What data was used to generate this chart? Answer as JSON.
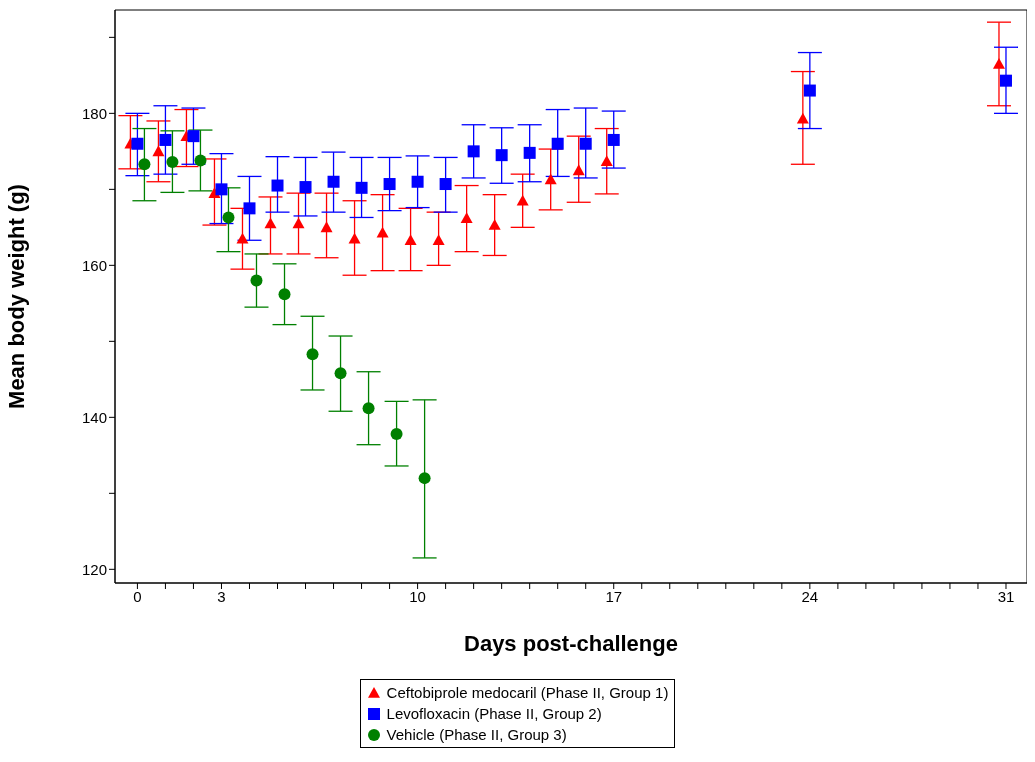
{
  "chart_data": {
    "type": "scatter",
    "xlabel": "Days post-challenge",
    "ylabel": "Mean body weight (g)",
    "xlim": [
      -0.8,
      31.75
    ],
    "ylim": [
      118.2,
      193.6
    ],
    "xticks": [
      0,
      {
        "value": 1,
        "label": null
      },
      {
        "value": 2,
        "label": null
      },
      3,
      {
        "value": 4,
        "label": null
      },
      {
        "value": 5,
        "label": null
      },
      {
        "value": 6,
        "label": null
      },
      {
        "value": 7,
        "label": null
      },
      {
        "value": 8,
        "label": null
      },
      {
        "value": 9,
        "label": null
      },
      10,
      {
        "value": 11,
        "label": null
      },
      {
        "value": 12,
        "label": null
      },
      {
        "value": 13,
        "label": null
      },
      {
        "value": 14,
        "label": null
      },
      {
        "value": 15,
        "label": null
      },
      {
        "value": 16,
        "label": null
      },
      17,
      {
        "value": 18,
        "label": null
      },
      {
        "value": 19,
        "label": null
      },
      {
        "value": 20,
        "label": null
      },
      {
        "value": 21,
        "label": null
      },
      {
        "value": 22,
        "label": null
      },
      {
        "value": 23,
        "label": null
      },
      24,
      {
        "value": 25,
        "label": null
      },
      {
        "value": 26,
        "label": null
      },
      {
        "value": 27,
        "label": null
      },
      {
        "value": 28,
        "label": null
      },
      {
        "value": 29,
        "label": null
      },
      {
        "value": 30,
        "label": null
      },
      31
    ],
    "yticks": [
      120,
      {
        "value": 130,
        "label": null
      },
      140,
      {
        "value": 150,
        "label": null
      },
      160,
      {
        "value": 170,
        "label": null
      },
      180,
      {
        "value": 190,
        "label": null
      }
    ],
    "grid": false,
    "legend": "bottom",
    "series": [
      {
        "name": "Ceftobiprole medocaril (Phase II, Group 1)",
        "color": "#ff0000",
        "marker": "triangle",
        "x": [
          -0.25,
          0.75,
          1.75,
          2.75,
          3.75,
          4.75,
          5.75,
          6.75,
          7.75,
          8.75,
          9.75,
          10.75,
          11.75,
          12.75,
          13.75,
          14.75,
          15.75,
          16.75,
          23.75,
          30.75
        ],
        "values": [
          176,
          175,
          177,
          169.5,
          163.5,
          165.5,
          165.5,
          165,
          163.5,
          164.3,
          163.3,
          163.3,
          166.2,
          165.3,
          168.5,
          171.3,
          172.5,
          173.7,
          179.3,
          186.5
        ],
        "errors": [
          [
            172.7,
            179.7
          ],
          [
            171,
            179
          ],
          [
            173,
            180.5
          ],
          [
            165.3,
            174
          ],
          [
            159.5,
            167.5
          ],
          [
            161.5,
            169
          ],
          [
            161.5,
            169.5
          ],
          [
            161,
            169.5
          ],
          [
            158.7,
            168.5
          ],
          [
            159.3,
            169.3
          ],
          [
            159.3,
            167.5
          ],
          [
            160,
            167
          ],
          [
            161.8,
            170.5
          ],
          [
            161.3,
            169.3
          ],
          [
            165,
            172
          ],
          [
            167.3,
            175.3
          ],
          [
            168.3,
            177
          ],
          [
            169.4,
            178
          ],
          [
            173.3,
            185.5
          ],
          [
            181,
            192
          ]
        ]
      },
      {
        "name": "Levofloxacin (Phase II, Group 2)",
        "color": "#0000ff",
        "marker": "square",
        "x": [
          0,
          1,
          2,
          3,
          4,
          5,
          6,
          7,
          8,
          9,
          10,
          11,
          12,
          13,
          14,
          15,
          16,
          17,
          24,
          31
        ],
        "values": [
          176,
          176.5,
          177,
          170,
          167.5,
          170.5,
          170.3,
          171,
          170.2,
          170.7,
          171,
          170.7,
          175,
          174.5,
          174.8,
          176,
          176,
          176.5,
          183,
          184.3
        ],
        "errors": [
          [
            171.8,
            180
          ],
          [
            172,
            181
          ],
          [
            173.3,
            180.7
          ],
          [
            165.5,
            174.7
          ],
          [
            163.3,
            171.7
          ],
          [
            167,
            174.3
          ],
          [
            166.5,
            174.2
          ],
          [
            167,
            174.9
          ],
          [
            166.3,
            174.2
          ],
          [
            167.2,
            174.2
          ],
          [
            167.6,
            174.4
          ],
          [
            167,
            174.2
          ],
          [
            171.5,
            178.5
          ],
          [
            170.8,
            178.1
          ],
          [
            171,
            178.5
          ],
          [
            171.7,
            180.5
          ],
          [
            171.5,
            180.7
          ],
          [
            172.8,
            180.3
          ],
          [
            178,
            188
          ],
          [
            180,
            188.7
          ]
        ]
      },
      {
        "name": "Vehicle (Phase II, Group 3)",
        "color": "#008000",
        "marker": "circle",
        "x": [
          0.25,
          1.25,
          2.25,
          3.25,
          4.25,
          5.25,
          6.25,
          7.25,
          8.25,
          9.25,
          10.25
        ],
        "values": [
          173.3,
          173.6,
          173.8,
          166.3,
          158,
          156.2,
          148.3,
          145.8,
          141.2,
          137.8,
          132
        ],
        "errors": [
          [
            168.5,
            178
          ],
          [
            169.6,
            177.7
          ],
          [
            169.8,
            177.8
          ],
          [
            161.8,
            170.2
          ],
          [
            154.5,
            161.5
          ],
          [
            152.2,
            160.2
          ],
          [
            143.6,
            153.3
          ],
          [
            140.8,
            150.7
          ],
          [
            136.4,
            146
          ],
          [
            133.6,
            142.1
          ],
          [
            121.5,
            142.3
          ]
        ]
      }
    ]
  }
}
